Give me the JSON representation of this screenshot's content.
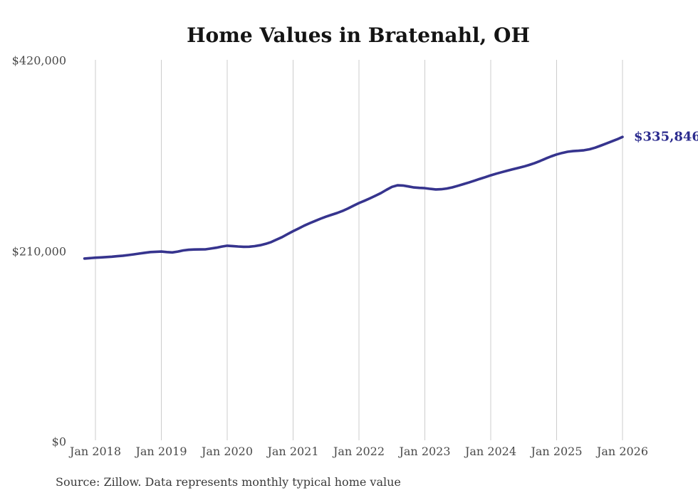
{
  "title": "Home Values in Bratenahl, OH",
  "source_note": "Source: Zillow. Data represents monthly typical home value",
  "colors": {
    "line": "#36348e",
    "grid": "#cccccc",
    "tick_text": "#4a4a4a",
    "title_text": "#141414",
    "end_label": "#2b2b8e",
    "source_text": "#3a3a3a",
    "background": "#ffffff"
  },
  "chart_data": {
    "type": "line",
    "title": "Home Values in Bratenahl, OH",
    "series_name": "Monthly typical home value",
    "x": [
      "2017-11",
      "2017-12",
      "2018-01",
      "2018-02",
      "2018-03",
      "2018-04",
      "2018-05",
      "2018-06",
      "2018-07",
      "2018-08",
      "2018-09",
      "2018-10",
      "2018-11",
      "2018-12",
      "2019-01",
      "2019-02",
      "2019-03",
      "2019-04",
      "2019-05",
      "2019-06",
      "2019-07",
      "2019-08",
      "2019-09",
      "2019-10",
      "2019-11",
      "2019-12",
      "2020-01",
      "2020-02",
      "2020-03",
      "2020-04",
      "2020-05",
      "2020-06",
      "2020-07",
      "2020-08",
      "2020-09",
      "2020-10",
      "2020-11",
      "2020-12",
      "2021-01",
      "2021-02",
      "2021-03",
      "2021-04",
      "2021-05",
      "2021-06",
      "2021-07",
      "2021-08",
      "2021-09",
      "2021-10",
      "2021-11",
      "2021-12",
      "2022-01",
      "2022-02",
      "2022-03",
      "2022-04",
      "2022-05",
      "2022-06",
      "2022-07",
      "2022-08",
      "2022-09",
      "2022-10",
      "2022-11",
      "2022-12",
      "2023-01",
      "2023-02",
      "2023-03",
      "2023-04",
      "2023-05",
      "2023-06",
      "2023-07",
      "2023-08",
      "2023-09",
      "2023-10",
      "2023-11",
      "2023-12",
      "2024-01",
      "2024-02",
      "2024-03",
      "2024-04",
      "2024-05",
      "2024-06",
      "2024-07",
      "2024-08",
      "2024-09",
      "2024-10",
      "2024-11",
      "2024-12",
      "2025-01",
      "2025-02",
      "2025-03",
      "2025-04",
      "2025-05",
      "2025-06",
      "2025-07",
      "2025-08",
      "2025-09",
      "2025-10",
      "2025-11",
      "2025-12",
      "2026-01"
    ],
    "values": [
      201800,
      202300,
      202800,
      203100,
      203500,
      203900,
      204400,
      205000,
      205700,
      206500,
      207300,
      208200,
      209000,
      209300,
      209500,
      209000,
      208600,
      209500,
      210800,
      211500,
      211800,
      211900,
      212000,
      212800,
      213800,
      215000,
      216000,
      215600,
      215100,
      214800,
      214900,
      215500,
      216500,
      218000,
      220000,
      222800,
      225500,
      228800,
      232000,
      235000,
      238000,
      240700,
      243200,
      245700,
      248000,
      250000,
      252000,
      254300,
      257000,
      260000,
      263000,
      265500,
      268200,
      271000,
      274000,
      277500,
      280800,
      282500,
      282300,
      281300,
      280200,
      279700,
      279400,
      278600,
      278000,
      278200,
      279000,
      280300,
      282000,
      283800,
      285600,
      287600,
      289600,
      291500,
      293500,
      295300,
      297000,
      298600,
      300200,
      301700,
      303200,
      305000,
      307000,
      309400,
      312000,
      314400,
      316500,
      318200,
      319500,
      320200,
      320600,
      321200,
      322300,
      324000,
      326200,
      328500,
      330800,
      333200,
      335846
    ],
    "ylim": [
      0,
      420000
    ],
    "yticks": [
      {
        "value": 0,
        "label": "$0"
      },
      {
        "value": 210000,
        "label": "$210,000"
      },
      {
        "value": 420000,
        "label": "$420,000"
      }
    ],
    "xticks": [
      {
        "month": "2018-01",
        "label": "Jan 2018"
      },
      {
        "month": "2019-01",
        "label": "Jan 2019"
      },
      {
        "month": "2020-01",
        "label": "Jan 2020"
      },
      {
        "month": "2021-01",
        "label": "Jan 2021"
      },
      {
        "month": "2022-01",
        "label": "Jan 2022"
      },
      {
        "month": "2023-01",
        "label": "Jan 2023"
      },
      {
        "month": "2024-01",
        "label": "Jan 2024"
      },
      {
        "month": "2025-01",
        "label": "Jan 2025"
      },
      {
        "month": "2026-01",
        "label": "Jan 2026"
      }
    ],
    "end_label": "$335,846",
    "latest_value": 335846,
    "grid": "vertical",
    "legend": "none"
  }
}
